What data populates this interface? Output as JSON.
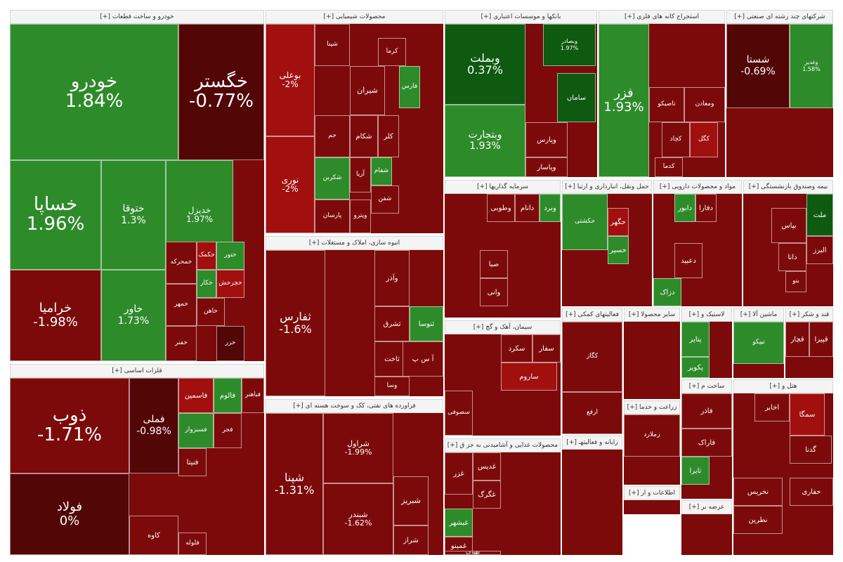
{
  "colors": {
    "green_dark": "#0e5a10",
    "green": "#2e8b2a",
    "green_light": "#3c9e35",
    "red": "#a10f0f",
    "red_mid": "#7d0a0a",
    "red_dark": "#520606",
    "header_bg": "#f4f4f4"
  },
  "sectors": [
    {
      "title": "خودرو و ساخت قطعات [+]",
      "tiles": [
        {
          "name": "خودرو",
          "pct": "1.84%"
        },
        {
          "name": "خگستر",
          "pct": "-0.77%"
        },
        {
          "name": "خساپا",
          "pct": "1.96%"
        },
        {
          "name": "ختوقا",
          "pct": "1.3%"
        },
        {
          "name": "خدیزل",
          "pct": "1.97%"
        },
        {
          "name": "خرامیا",
          "pct": "-1.98%"
        },
        {
          "name": "خاور",
          "pct": "1.73%"
        },
        {
          "name": "خمحرکه"
        },
        {
          "name": "خکمک"
        },
        {
          "name": "ختور"
        },
        {
          "name": "خمهر"
        },
        {
          "name": "خکار"
        },
        {
          "name": "خچرخش"
        },
        {
          "name": "خاهن"
        },
        {
          "name": "خزر"
        },
        {
          "name": "خفنر"
        }
      ]
    },
    {
      "title": "محصولات شیمیایی [+]",
      "tiles": [
        {
          "name": "بوعلی",
          "pct": "-2%"
        },
        {
          "name": "نوری",
          "pct": "-2%"
        },
        {
          "name": "شپنا"
        },
        {
          "name": "شیران"
        },
        {
          "name": "فارس"
        },
        {
          "name": "شکام"
        },
        {
          "name": "کلر"
        },
        {
          "name": "جم"
        },
        {
          "name": "آریا"
        },
        {
          "name": "شفام"
        },
        {
          "name": "شکربن"
        },
        {
          "name": "شفن"
        },
        {
          "name": "پارسان"
        },
        {
          "name": "ویترو"
        },
        {
          "name": "کرما"
        }
      ]
    },
    {
      "title": "بانکها و موسسات اعتباری [+]",
      "tiles": [
        {
          "name": "وبملت",
          "pct": "0.37%"
        },
        {
          "name": "وبتجارت",
          "pct": "1.93%"
        },
        {
          "name": "ساماں"
        },
        {
          "name": "وپارس"
        },
        {
          "name": "وپاسار"
        },
        {
          "name": "وبصادر",
          "pct": "1.97%"
        }
      ]
    },
    {
      "title": "استخراج کانه های فلزی [+]",
      "tiles": [
        {
          "name": "فزر",
          "pct": "1.93%"
        },
        {
          "name": "تاصیکو"
        },
        {
          "name": "ومعادن"
        },
        {
          "name": "کچاد"
        },
        {
          "name": "کگل"
        },
        {
          "name": "کدما"
        }
      ]
    },
    {
      "title": "شرکتهای چند رشته ای صنعتی [+]",
      "tiles": [
        {
          "name": "شستا",
          "pct": "-0.69%"
        },
        {
          "name": "وغدیر",
          "pct": "1.58%"
        }
      ]
    },
    {
      "title": "انبوه سازی، املاک و مستغلات [+]",
      "tiles": [
        {
          "name": "ثفارس",
          "pct": "-1.6%"
        },
        {
          "name": "وآذر"
        },
        {
          "name": "ثشرق"
        },
        {
          "name": "ثنوسا"
        },
        {
          "name": "ثاخت"
        },
        {
          "name": "آ س پ"
        },
        {
          "name": "وسا"
        }
      ]
    },
    {
      "title": "فراورده های نفتی، کک و سوخت هسته ای [+]",
      "tiles": [
        {
          "name": "شپنا",
          "pct": "-1.31%"
        },
        {
          "name": "شراول",
          "pct": "-1.99%"
        },
        {
          "name": "شبندر",
          "pct": "-1.62%"
        },
        {
          "name": "شبریز"
        },
        {
          "name": "شراز"
        }
      ]
    },
    {
      "title": "سرمایه گذاریها [+]",
      "tiles": [
        {
          "name": "وطوبی"
        },
        {
          "name": "دانام"
        },
        {
          "name": "وبرد"
        },
        {
          "name": "صبا"
        },
        {
          "name": "وانی"
        }
      ]
    },
    {
      "title": "حمل ونقل، انبارداری و ارتبا [+]",
      "tiles": [
        {
          "name": "حکشتی"
        },
        {
          "name": "حگهر"
        },
        {
          "name": "حسیر"
        }
      ]
    },
    {
      "title": "مواد و محصولات دارویی [+]",
      "tiles": [
        {
          "name": "دابور"
        },
        {
          "name": "دفارا"
        },
        {
          "name": "دعبید"
        },
        {
          "name": "دزاک"
        }
      ]
    },
    {
      "title": "بیمه وصندوق بازنشستگی [+]",
      "tiles": [
        {
          "name": "بپاس"
        },
        {
          "name": "ملت"
        },
        {
          "name": "البرز"
        },
        {
          "name": "دانا"
        },
        {
          "name": "بنو"
        }
      ]
    },
    {
      "title": "فلزات اساسی [+]",
      "tiles": [
        {
          "name": "ذوب",
          "pct": "-1.71%"
        },
        {
          "name": "فملی",
          "pct": "-0.98%"
        },
        {
          "name": "فولاد",
          "pct": "0%"
        },
        {
          "name": "فالوم"
        },
        {
          "name": "فاسمین"
        },
        {
          "name": "فباهنر"
        },
        {
          "name": "فسبزوار"
        },
        {
          "name": "فجر"
        },
        {
          "name": "فنیتا"
        },
        {
          "name": "کاوه"
        },
        {
          "name": "فلوله"
        }
      ]
    },
    {
      "title": "سیمان، آهک و گچ [+]",
      "tiles": [
        {
          "name": "سکرد"
        },
        {
          "name": "سفار"
        },
        {
          "name": "ساروم"
        },
        {
          "name": "سصوفی"
        }
      ]
    },
    {
      "title": "محصولات غذایی و آشامیدنی به جز ق [+]",
      "tiles": [
        {
          "name": "غزر"
        },
        {
          "name": "غدیس"
        },
        {
          "name": "غبشهر"
        },
        {
          "name": "غمینو"
        },
        {
          "name": "غگرگ"
        },
        {
          "name": "بهپاک"
        }
      ]
    },
    {
      "title": "فعالیتهای کمکی [+]",
      "tiles": [
        {
          "name": "کگاز"
        },
        {
          "name": "ارفع"
        }
      ]
    },
    {
      "title": "سایر محصولا [+]",
      "tiles": []
    },
    {
      "title": "لاستیک و [+]",
      "tiles": [
        {
          "name": "پتایر"
        },
        {
          "name": "پکویر"
        }
      ]
    },
    {
      "title": "ماشین آلا [+]",
      "tiles": [
        {
          "name": "تیپکو"
        }
      ]
    },
    {
      "title": "قند و شکر [+]",
      "tiles": [
        {
          "name": "قچار"
        },
        {
          "name": "قپیرا"
        }
      ]
    },
    {
      "title": "زراعت و خدما [+]",
      "tiles": [
        {
          "name": "زملارد"
        }
      ]
    },
    {
      "title": "رایانه و فعالیتهـ [+]",
      "tiles": []
    },
    {
      "title": "ساخت م [+]",
      "tiles": [
        {
          "name": "فاذر"
        },
        {
          "name": "فاراک"
        },
        {
          "name": "تایرا"
        }
      ]
    },
    {
      "title": "اطلاعات و ار [+]",
      "tiles": []
    },
    {
      "title": "عرضه بر [+]",
      "tiles": []
    },
    {
      "title": "هتل و [+]",
      "tiles": [
        {
          "name": "اخابر"
        },
        {
          "name": "سمگا"
        },
        {
          "name": "گدنا"
        },
        {
          "name": "نخریس"
        },
        {
          "name": "نطرین"
        },
        {
          "name": "حفاری"
        }
      ]
    }
  ]
}
